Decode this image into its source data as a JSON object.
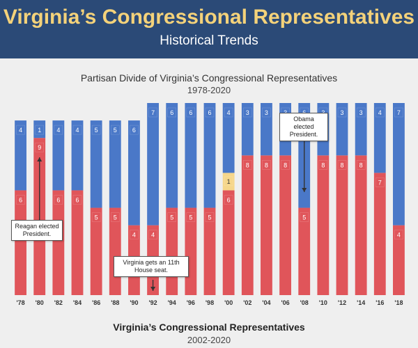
{
  "header": {
    "title": "Virginia’s Congressional Representatives",
    "subtitle": "Historical Trends"
  },
  "chart_title": "Partisan Divide of Virginia’s Congressional Representatives",
  "chart_subtitle": "1978-2020",
  "footer": {
    "title": "Virginia’s Congressional Representatives",
    "subtitle": "2002-2020"
  },
  "colors": {
    "republican": "#e0555a",
    "democrat": "#4a78c8",
    "independent": "#f6d68a"
  },
  "chart_data": {
    "type": "bar",
    "stacked": true,
    "categories": [
      "'78",
      "'80",
      "'82",
      "'84",
      "'86",
      "'88",
      "'90",
      "'92",
      "'94",
      "'96",
      "'98",
      "'00",
      "'02",
      "'04",
      "'06",
      "'08",
      "'10",
      "'12",
      "'14",
      "'16",
      "'18"
    ],
    "series": [
      {
        "key": "republican",
        "values": [
          6,
          9,
          6,
          6,
          5,
          5,
          4,
          4,
          5,
          5,
          5,
          6,
          8,
          8,
          8,
          5,
          8,
          8,
          8,
          7,
          4
        ]
      },
      {
        "key": "independent",
        "values": [
          0,
          0,
          0,
          0,
          0,
          0,
          0,
          0,
          0,
          0,
          0,
          1,
          0,
          0,
          0,
          0,
          0,
          0,
          0,
          0,
          0
        ]
      },
      {
        "key": "democrat",
        "values": [
          4,
          1,
          4,
          4,
          5,
          5,
          6,
          7,
          6,
          6,
          6,
          4,
          3,
          3,
          3,
          6,
          3,
          3,
          3,
          4,
          7
        ]
      }
    ],
    "ylim": [
      0,
      11
    ]
  },
  "annotations": [
    {
      "id": "reagan",
      "text": "Reagan elected President."
    },
    {
      "id": "virginia",
      "text": "Virginia gets an 11th House seat."
    },
    {
      "id": "obama",
      "text": "Obama elected President."
    }
  ]
}
